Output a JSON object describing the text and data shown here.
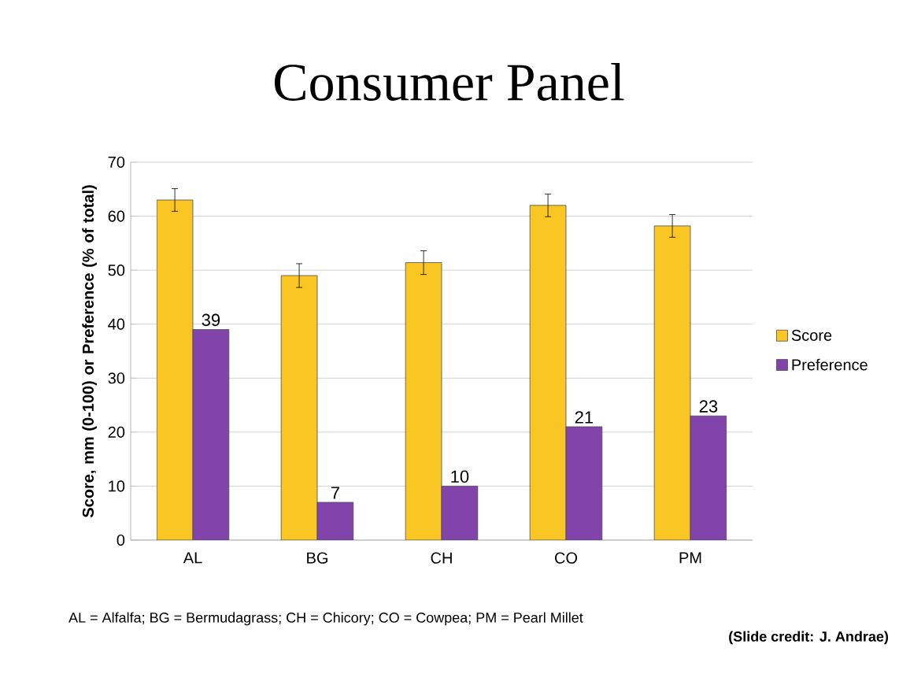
{
  "chart_data": {
    "type": "bar",
    "title": "Consumer Panel",
    "ylabel": "Score, mm (0-100) or Preference (% of total)",
    "categories": [
      "AL",
      "BG",
      "CH",
      "CO",
      "PM"
    ],
    "series": [
      {
        "name": "Score",
        "color": "#f9c623",
        "values": [
          63,
          49,
          51.4,
          62,
          58.2
        ],
        "errors": [
          2.1,
          2.2,
          2.2,
          2.1,
          2.1
        ]
      },
      {
        "name": "Preference",
        "color": "#8244ab",
        "values": [
          39,
          7,
          10,
          21,
          23
        ],
        "value_labels": [
          "39",
          "7",
          "10",
          "21",
          "23"
        ]
      }
    ],
    "ylim": [
      0,
      70
    ],
    "yticks": [
      0,
      10,
      20,
      30,
      40,
      50,
      60,
      70
    ],
    "grid": "y",
    "legend": "right",
    "annotations": [
      "AL = Alfalfa; BG = Bermudagrass; CH = Chicory; CO = Cowpea; PM = Pearl Millet",
      "(Slide credit: J. Andrae)"
    ]
  }
}
